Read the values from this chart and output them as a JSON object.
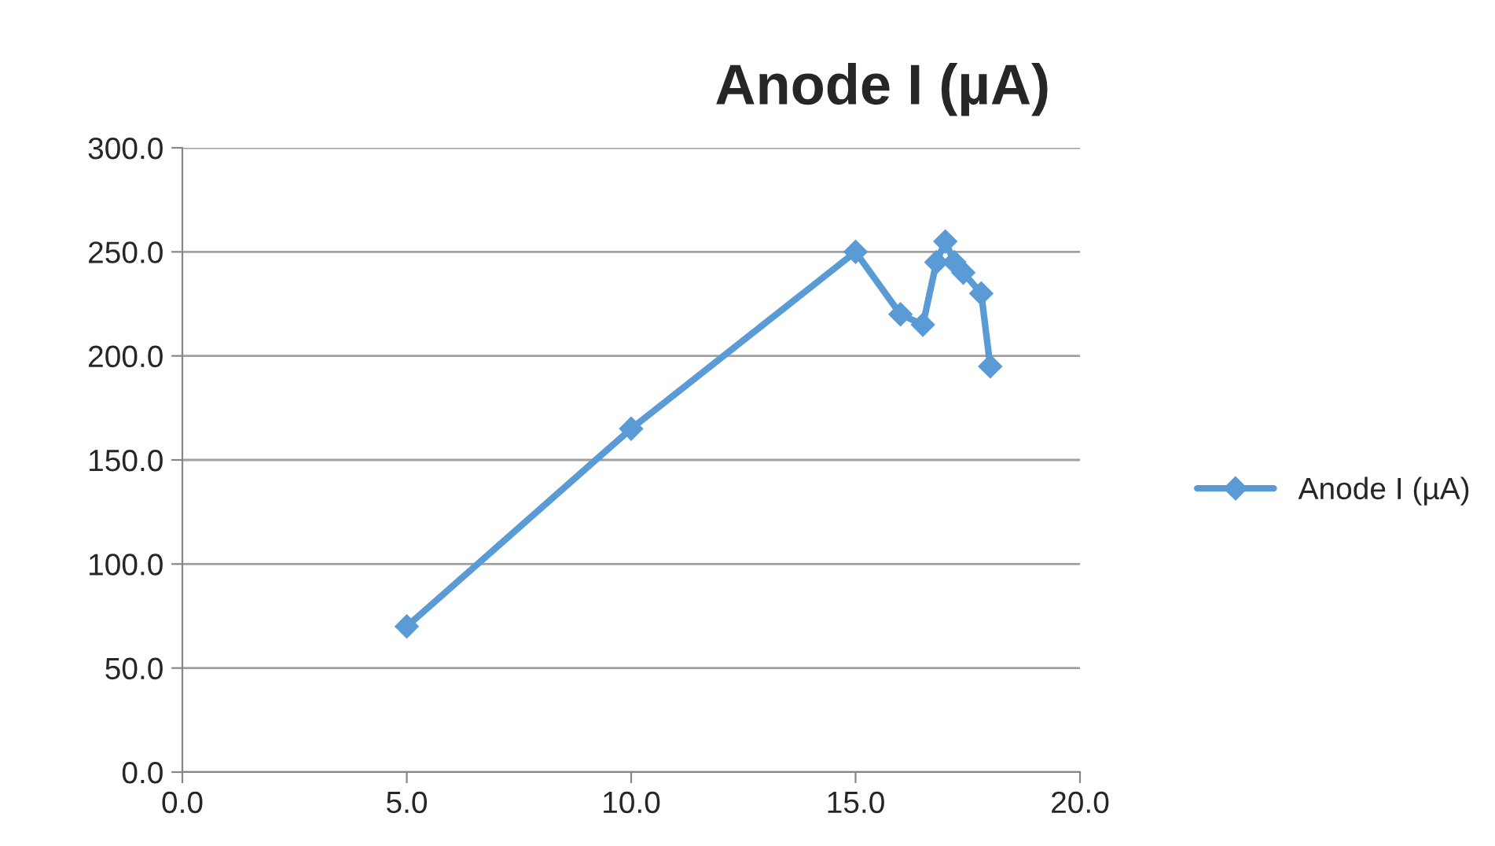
{
  "chart_data": {
    "type": "line",
    "title": "Anode I (µA)",
    "x": [
      5,
      10,
      15,
      16,
      16.5,
      16.8,
      17,
      17.2,
      17.4,
      17.8,
      18
    ],
    "series": [
      {
        "name": "Anode I (µA)",
        "color": "#5b9bd5",
        "values": [
          70,
          165,
          250,
          220,
          215,
          245,
          255,
          245,
          240,
          230,
          195
        ]
      }
    ],
    "xlim": [
      0,
      20
    ],
    "xticks": [
      {
        "value": 0,
        "label": "0.0"
      },
      {
        "value": 5,
        "label": "5.0"
      },
      {
        "value": 10,
        "label": "10.0"
      },
      {
        "value": 15,
        "label": "15.0"
      },
      {
        "value": 20,
        "label": "20.0"
      }
    ],
    "ylim": [
      0,
      300
    ],
    "yticks": [
      {
        "value": 0,
        "label": "0.0"
      },
      {
        "value": 50,
        "label": "50.0"
      },
      {
        "value": 100,
        "label": "100.0"
      },
      {
        "value": 150,
        "label": "150.0"
      },
      {
        "value": 200,
        "label": "200.0"
      },
      {
        "value": 250,
        "label": "250.0"
      },
      {
        "value": 300,
        "label": "300.0"
      }
    ],
    "grid": "y",
    "legend": "right",
    "marker": "diamond",
    "line_style": "solid"
  }
}
